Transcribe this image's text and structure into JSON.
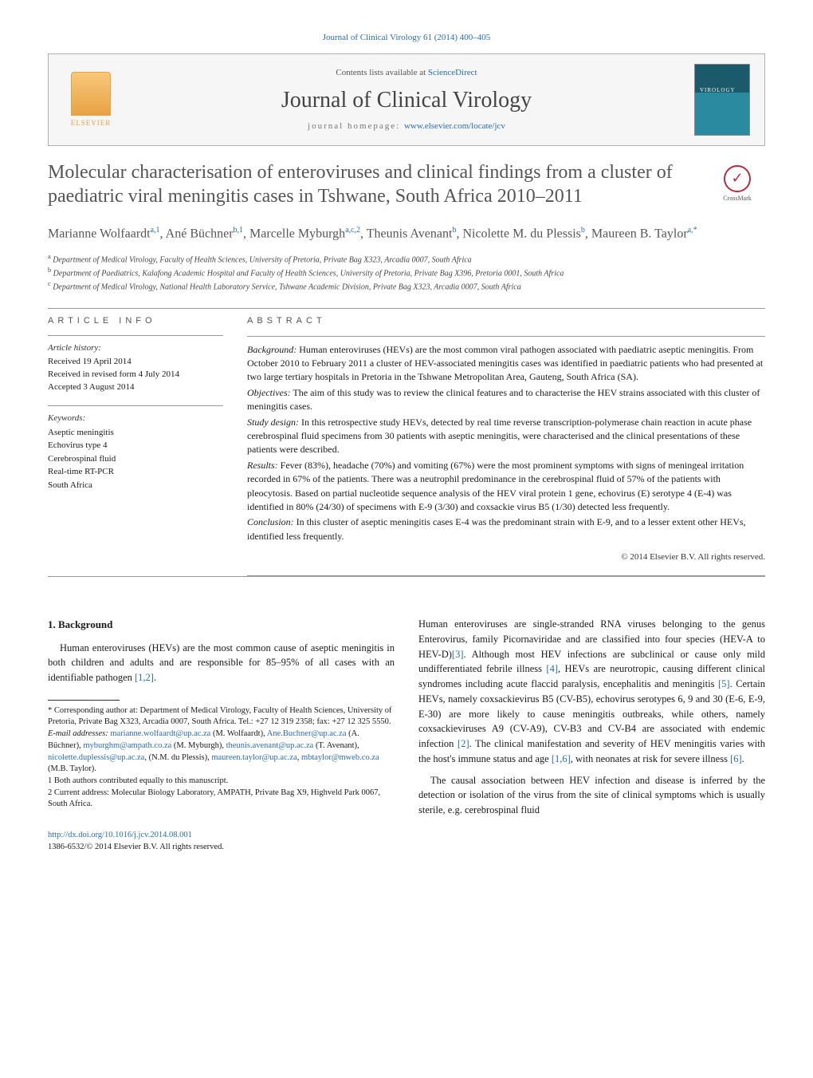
{
  "journal_ref_top": "Journal of Clinical Virology 61 (2014) 400–405",
  "header": {
    "elsevier_label": "ELSEVIER",
    "contents_prefix": "Contents lists available at ",
    "contents_link": "ScienceDirect",
    "journal_name": "Journal of Clinical Virology",
    "homepage_prefix": "journal homepage: ",
    "homepage_link": "www.elsevier.com/locate/jcv"
  },
  "crossmark_label": "CrossMark",
  "title": "Molecular characterisation of enteroviruses and clinical findings from a cluster of paediatric viral meningitis cases in Tshwane, South Africa 2010–2011",
  "authors_html": "Marianne Wolfaardt<sup>a,1</sup>, Ané Büchner<sup>b,1</sup>, Marcelle Myburgh<sup>a,c,2</sup>, Theunis Avenant<sup>b</sup>, Nicolette M. du Plessis<sup>b</sup>, Maureen B. Taylor<sup>a,*</sup>",
  "affiliations": [
    {
      "sup": "a",
      "text": "Department of Medical Virology, Faculty of Health Sciences, University of Pretoria, Private Bag X323, Arcadia 0007, South Africa"
    },
    {
      "sup": "b",
      "text": "Department of Paediatrics, Kalafong Academic Hospital and Faculty of Health Sciences, University of Pretoria, Private Bag X396, Pretoria 0001, South Africa"
    },
    {
      "sup": "c",
      "text": "Department of Medical Virology, National Health Laboratory Service, Tshwane Academic Division, Private Bag X323, Arcadia 0007, South Africa"
    }
  ],
  "article_info": {
    "heading": "ARTICLE INFO",
    "history_head": "Article history:",
    "received": "Received 19 April 2014",
    "revised": "Received in revised form 4 July 2014",
    "accepted": "Accepted 3 August 2014",
    "keywords_head": "Keywords:",
    "keywords": [
      "Aseptic meningitis",
      "Echovirus type 4",
      "Cerebrospinal fluid",
      "Real-time RT-PCR",
      "South Africa"
    ]
  },
  "abstract": {
    "heading": "ABSTRACT",
    "segments": [
      {
        "label": "Background:",
        "text": " Human enteroviruses (HEVs) are the most common viral pathogen associated with paediatric aseptic meningitis. From October 2010 to February 2011 a cluster of HEV-associated meningitis cases was identified in paediatric patients who had presented at two large tertiary hospitals in Pretoria in the Tshwane Metropolitan Area, Gauteng, South Africa (SA)."
      },
      {
        "label": "Objectives:",
        "text": " The aim of this study was to review the clinical features and to characterise the HEV strains associated with this cluster of meningitis cases."
      },
      {
        "label": "Study design:",
        "text": " In this retrospective study HEVs, detected by real time reverse transcription-polymerase chain reaction in acute phase cerebrospinal fluid specimens from 30 patients with aseptic meningitis, were characterised and the clinical presentations of these patients were described."
      },
      {
        "label": "Results:",
        "text": " Fever (83%), headache (70%) and vomiting (67%) were the most prominent symptoms with signs of meningeal irritation recorded in 67% of the patients. There was a neutrophil predominance in the cerebrospinal fluid of 57% of the patients with pleocytosis. Based on partial nucleotide sequence analysis of the HEV viral protein 1 gene, echovirus (E) serotype 4 (E-4) was identified in 80% (24/30) of specimens with E-9 (3/30) and coxsackie virus B5 (1/30) detected less frequently."
      },
      {
        "label": "Conclusion:",
        "text": " In this cluster of aseptic meningitis cases E-4 was the predominant strain with E-9, and to a lesser extent other HEVs, identified less frequently."
      }
    ],
    "copyright": "© 2014 Elsevier B.V. All rights reserved."
  },
  "body": {
    "section_heading": "1. Background",
    "left_paragraphs": [
      "Human enteroviruses (HEVs) are the most common cause of aseptic meningitis in both children and adults and are responsible for 85–95% of all cases with an identifiable pathogen <span class=\"cite\">[1,2]</span>."
    ],
    "right_paragraphs": [
      "Human enteroviruses are single-stranded RNA viruses belonging to the genus Enterovirus, family Picornaviridae and are classified into four species (HEV-A to HEV-D)<span class=\"cite\">[3]</span>. Although most HEV infections are subclinical or cause only mild undifferentiated febrile illness <span class=\"cite\">[4]</span>, HEVs are neurotropic, causing different clinical syndromes including acute flaccid paralysis, encephalitis and meningitis <span class=\"cite\">[5]</span>. Certain HEVs, namely coxsackievirus B5 (CV-B5), echovirus serotypes 6, 9 and 30 (E-6, E-9, E-30) are more likely to cause meningitis outbreaks, while others, namely coxsackieviruses A9 (CV-A9), CV-B3 and CV-B4 are associated with endemic infection <span class=\"cite\">[2]</span>. The clinical manifestation and severity of HEV meningitis varies with the host's immune status and age <span class=\"cite\">[1,6]</span>, with neonates at risk for severe illness <span class=\"cite\">[6]</span>.",
      "The causal association between HEV infection and disease is inferred by the detection or isolation of the virus from the site of clinical symptoms which is usually sterile, e.g. cerebrospinal fluid"
    ]
  },
  "footnotes": {
    "corresponding": "* Corresponding author at: Department of Medical Virology, Faculty of Health Sciences, University of Pretoria, Private Bag X323, Arcadia 0007, South Africa. Tel.: +27 12 319 2358; fax: +27 12 325 5550.",
    "emails_label": "E-mail addresses:",
    "emails": [
      {
        "addr": "marianne.wolfaardt@up.ac.za",
        "who": "(M. Wolfaardt)"
      },
      {
        "addr": "Ane.Buchner@up.ac.za",
        "who": "(A. Büchner)"
      },
      {
        "addr": "myburghm@ampath.co.za",
        "who": "(M. Myburgh)"
      },
      {
        "addr": "theunis.avenant@up.ac.za",
        "who": "(T. Avenant)"
      },
      {
        "addr": "nicolette.duplessis@up.ac.za",
        "who": ""
      },
      {
        "addr": "",
        "who": "(N.M. du Plessis)"
      },
      {
        "addr": "maureen.taylor@up.ac.za",
        "who": ""
      },
      {
        "addr": "mbtaylor@mweb.co.za",
        "who": "(M.B. Taylor)."
      }
    ],
    "note1": "1 Both authors contributed equally to this manuscript.",
    "note2": "2 Current address: Molecular Biology Laboratory, AMPATH, Private Bag X9, Highveld Park 0067, South Africa."
  },
  "footer": {
    "doi": "http://dx.doi.org/10.1016/j.jcv.2014.08.001",
    "issn_line": "1386-6532/© 2014 Elsevier B.V. All rights reserved."
  },
  "colors": {
    "link": "#2a6cb5",
    "text_muted": "#555555",
    "elsevier_orange": "#e8a244",
    "crossmark_red": "#b03040",
    "rule": "#999999"
  }
}
